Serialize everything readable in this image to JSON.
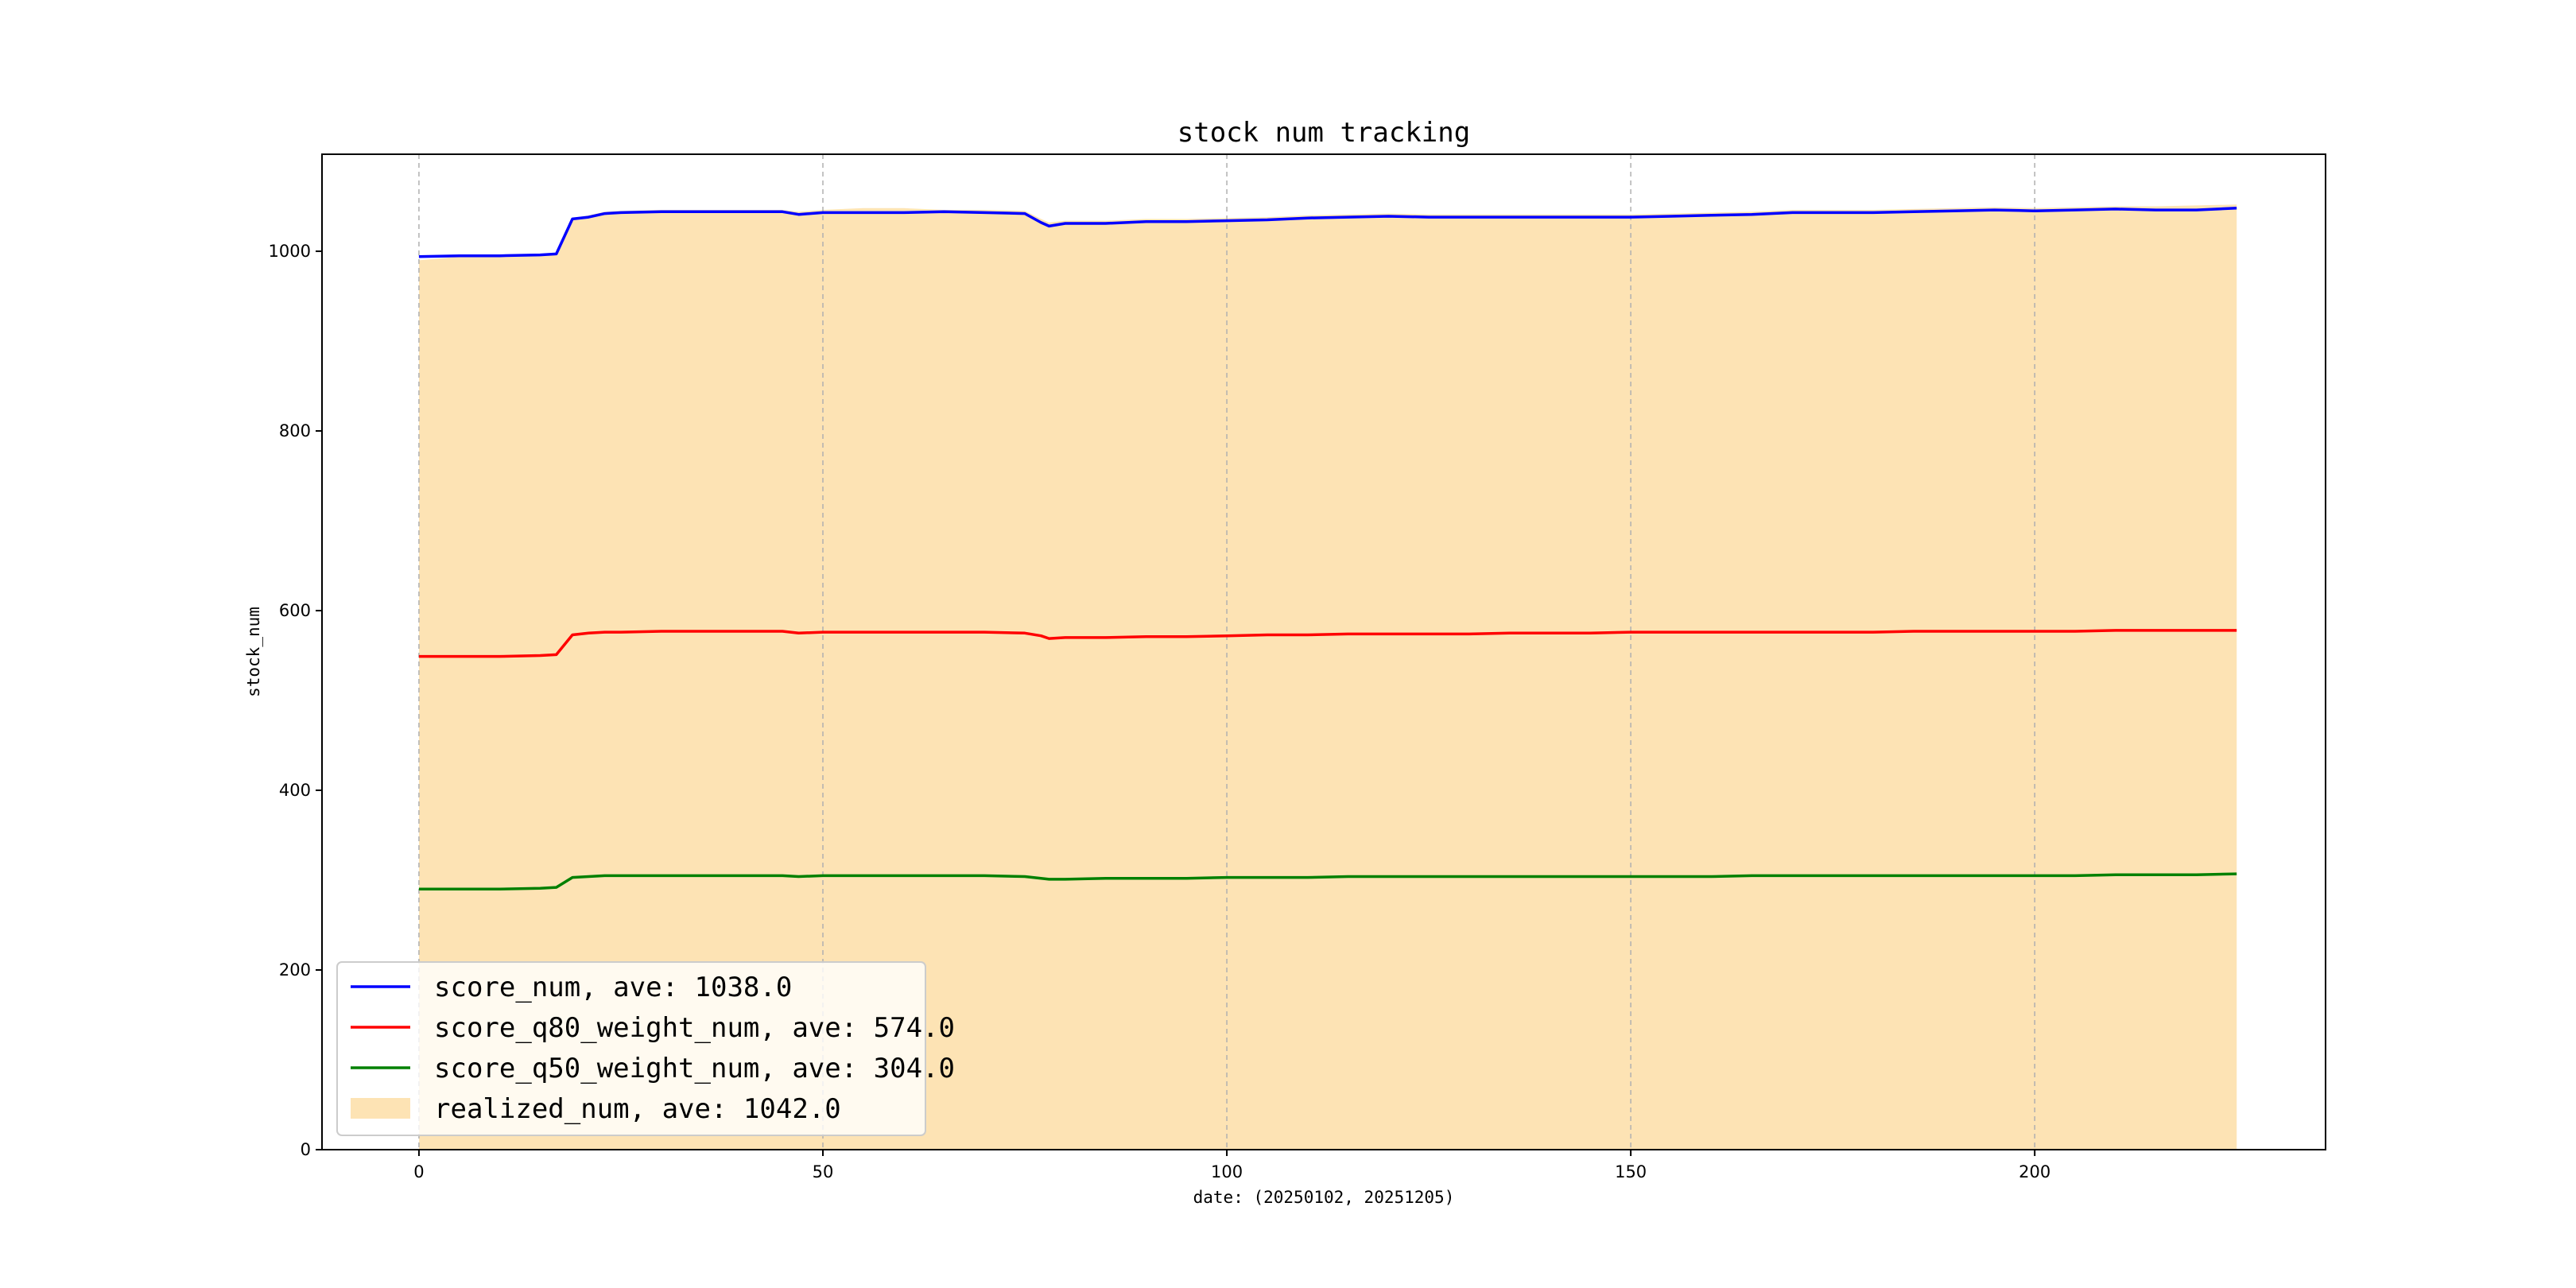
{
  "chart_data": {
    "type": "line",
    "title": "stock num tracking",
    "xlabel": "date: (20250102, 20251205)",
    "ylabel": "stock_num",
    "xlim": [
      -12,
      236
    ],
    "ylim": [
      0,
      1108
    ],
    "x_ticks": [
      0,
      50,
      100,
      150,
      200
    ],
    "y_ticks": [
      0,
      200,
      400,
      600,
      800,
      1000
    ],
    "x_grid": true,
    "y_grid": false,
    "legend_position": "lower-left",
    "x": [
      0,
      5,
      10,
      15,
      17,
      19,
      21,
      23,
      25,
      30,
      35,
      40,
      45,
      47,
      50,
      55,
      60,
      65,
      70,
      75,
      77,
      78,
      80,
      85,
      90,
      95,
      100,
      105,
      110,
      115,
      120,
      125,
      130,
      135,
      140,
      145,
      150,
      155,
      160,
      165,
      170,
      175,
      180,
      185,
      190,
      195,
      200,
      205,
      210,
      215,
      220,
      225
    ],
    "series": [
      {
        "name": "score_num, ave: 1038.0",
        "type": "line",
        "color": "#0000ff",
        "values": [
          994,
          995,
          995,
          996,
          997,
          1036,
          1038,
          1042,
          1043,
          1044,
          1044,
          1044,
          1044,
          1041,
          1043,
          1043,
          1043,
          1044,
          1043,
          1042,
          1032,
          1028,
          1031,
          1031,
          1033,
          1033,
          1034,
          1035,
          1037,
          1038,
          1039,
          1038,
          1038,
          1038,
          1038,
          1038,
          1038,
          1039,
          1040,
          1041,
          1043,
          1043,
          1043,
          1044,
          1045,
          1046,
          1045,
          1046,
          1047,
          1046,
          1046,
          1048
        ]
      },
      {
        "name": "score_q80_weight_num, ave: 574.0",
        "type": "line",
        "color": "#ff0000",
        "values": [
          549,
          549,
          549,
          550,
          551,
          573,
          575,
          576,
          576,
          577,
          577,
          577,
          577,
          575,
          576,
          576,
          576,
          576,
          576,
          575,
          572,
          569,
          570,
          570,
          571,
          571,
          572,
          573,
          573,
          574,
          574,
          574,
          574,
          575,
          575,
          575,
          576,
          576,
          576,
          576,
          576,
          576,
          576,
          577,
          577,
          577,
          577,
          577,
          578,
          578,
          578,
          578
        ]
      },
      {
        "name": "score_q50_weight_num, ave: 304.0",
        "type": "line",
        "color": "#008000",
        "values": [
          290,
          290,
          290,
          291,
          292,
          303,
          304,
          305,
          305,
          305,
          305,
          305,
          305,
          304,
          305,
          305,
          305,
          305,
          305,
          304,
          302,
          301,
          301,
          302,
          302,
          302,
          303,
          303,
          303,
          304,
          304,
          304,
          304,
          304,
          304,
          304,
          304,
          304,
          304,
          305,
          305,
          305,
          305,
          305,
          305,
          305,
          305,
          305,
          306,
          306,
          306,
          307
        ]
      },
      {
        "name": "realized_num, ave: 1042.0",
        "type": "area",
        "color": "#fde3b4",
        "values": [
          990,
          994,
          994,
          995,
          996,
          1037,
          1040,
          1044,
          1045,
          1046,
          1046,
          1046,
          1046,
          1044,
          1046,
          1048,
          1048,
          1046,
          1046,
          1045,
          1036,
          1032,
          1034,
          1034,
          1036,
          1036,
          1037,
          1038,
          1040,
          1041,
          1042,
          1041,
          1041,
          1041,
          1041,
          1041,
          1041,
          1042,
          1043,
          1044,
          1046,
          1046,
          1046,
          1047,
          1048,
          1049,
          1048,
          1049,
          1050,
          1050,
          1051,
          1052
        ]
      }
    ]
  }
}
